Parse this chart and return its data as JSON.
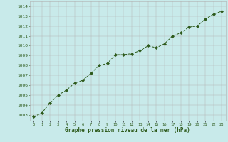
{
  "x": [
    0,
    1,
    2,
    3,
    4,
    5,
    6,
    7,
    8,
    9,
    10,
    11,
    12,
    13,
    14,
    15,
    16,
    17,
    18,
    19,
    20,
    21,
    22,
    23
  ],
  "y": [
    1002.8,
    1003.2,
    1004.2,
    1005.0,
    1005.5,
    1006.2,
    1006.5,
    1007.2,
    1008.0,
    1008.2,
    1009.1,
    1009.1,
    1009.2,
    1009.5,
    1010.0,
    1009.8,
    1010.2,
    1011.0,
    1011.3,
    1011.9,
    1012.0,
    1012.7,
    1013.2,
    1013.5
  ],
  "line_color": "#2d5a1b",
  "marker": "D",
  "marker_size": 2.0,
  "bg_color": "#c8eaea",
  "grid_color": "#b0b0b0",
  "axis_label_color": "#2d5a1b",
  "tick_color": "#2d5a1b",
  "ylabel_ticks": [
    1003,
    1004,
    1005,
    1006,
    1007,
    1008,
    1009,
    1010,
    1011,
    1012,
    1013,
    1014
  ],
  "ylim": [
    1002.4,
    1014.5
  ],
  "xlim": [
    -0.5,
    23.5
  ],
  "xlabel": "Graphe pression niveau de la mer (hPa)"
}
